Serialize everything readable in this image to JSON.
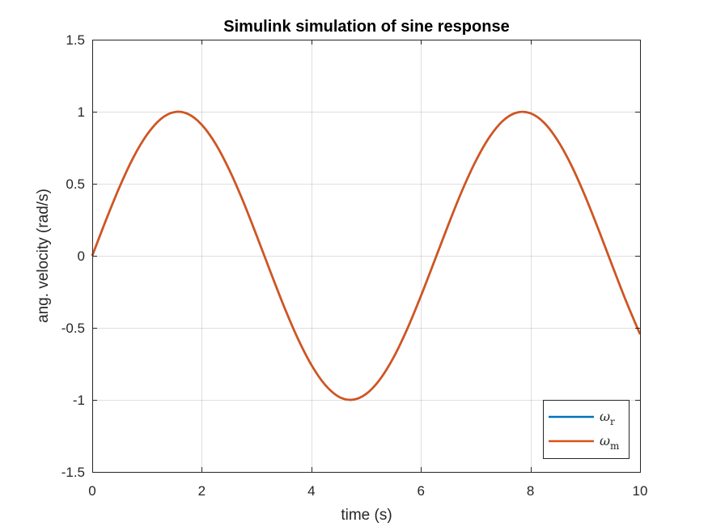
{
  "chart_data": {
    "type": "line",
    "title": "Simulink simulation of sine response",
    "xlabel": "time (s)",
    "ylabel": "ang. velocity (rad/s)",
    "xlim": [
      0,
      10
    ],
    "ylim": [
      -1.5,
      1.5
    ],
    "xticks": [
      0,
      2,
      4,
      6,
      8,
      10
    ],
    "xtick_labels": [
      "0",
      "2",
      "4",
      "6",
      "8",
      "10"
    ],
    "yticks": [
      -1.5,
      -1,
      -0.5,
      0,
      0.5,
      1,
      1.5
    ],
    "ytick_labels": [
      "-1.5",
      "-1",
      "-0.5",
      "0",
      "0.5",
      "1",
      "1.5"
    ],
    "grid": true,
    "legend_position": "bottom-right",
    "x": [
      0,
      0.25,
      0.5,
      0.75,
      1,
      1.25,
      1.5,
      1.75,
      2,
      2.25,
      2.5,
      2.75,
      3,
      3.25,
      3.5,
      3.75,
      4,
      4.25,
      4.5,
      4.75,
      5,
      5.25,
      5.5,
      5.75,
      6,
      6.25,
      6.5,
      6.75,
      7,
      7.25,
      7.5,
      7.75,
      8,
      8.25,
      8.5,
      8.75,
      9,
      9.25,
      9.5,
      9.75,
      10
    ],
    "series": [
      {
        "name": "ω_r",
        "legend_symbol": "ω",
        "legend_subscript": "r",
        "color": "#0072BD",
        "values": [
          0,
          0.247,
          0.479,
          0.682,
          0.841,
          0.949,
          0.997,
          0.984,
          0.909,
          0.778,
          0.598,
          0.382,
          0.141,
          -0.108,
          -0.351,
          -0.572,
          -0.757,
          -0.895,
          -0.978,
          -0.999,
          -0.959,
          -0.859,
          -0.706,
          -0.508,
          -0.279,
          -0.033,
          0.215,
          0.451,
          0.657,
          0.823,
          0.938,
          0.994,
          0.989,
          0.923,
          0.798,
          0.625,
          0.412,
          0.174,
          -0.075,
          -0.319,
          -0.544
        ]
      },
      {
        "name": "ω_m",
        "legend_symbol": "ω",
        "legend_subscript": "m",
        "color": "#D95319",
        "values": [
          0,
          0.247,
          0.479,
          0.682,
          0.841,
          0.949,
          0.997,
          0.984,
          0.909,
          0.778,
          0.598,
          0.382,
          0.141,
          -0.108,
          -0.351,
          -0.572,
          -0.757,
          -0.895,
          -0.978,
          -0.999,
          -0.959,
          -0.859,
          -0.706,
          -0.508,
          -0.279,
          -0.033,
          0.215,
          0.451,
          0.657,
          0.823,
          0.938,
          0.994,
          0.989,
          0.923,
          0.798,
          0.625,
          0.412,
          0.174,
          -0.075,
          -0.319,
          -0.544
        ]
      }
    ]
  }
}
